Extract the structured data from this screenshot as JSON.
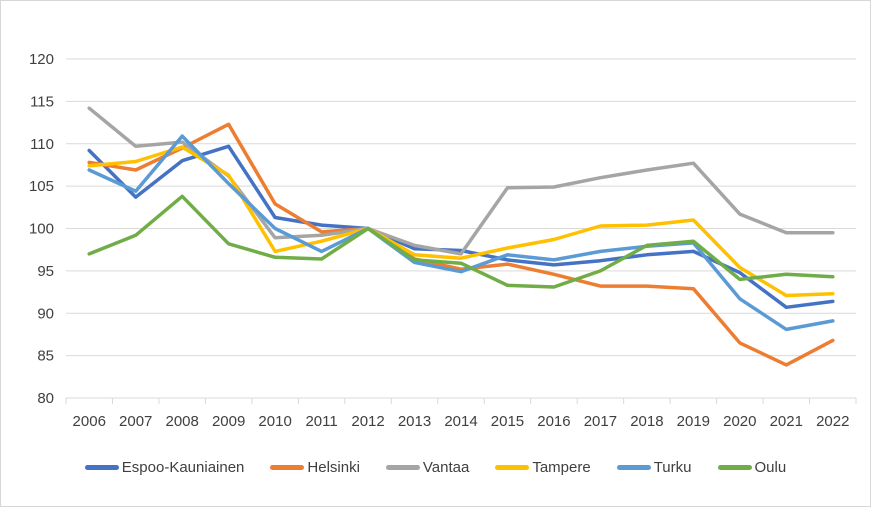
{
  "chart_data": {
    "type": "line",
    "title": "",
    "xlabel": "",
    "ylabel": "",
    "x": [
      "2006",
      "2007",
      "2008",
      "2009",
      "2010",
      "2011",
      "2012",
      "2013",
      "2014",
      "2015",
      "2016",
      "2017",
      "2018",
      "2019",
      "2020",
      "2021",
      "2022"
    ],
    "ylim": [
      80,
      120
    ],
    "y_ticks": [
      120,
      115,
      110,
      105,
      100,
      95,
      90,
      85,
      80
    ],
    "grid": "horizontal",
    "legend_position": "bottom",
    "gridline_color": "#d9d9d9",
    "axis_text_color": "#404040",
    "series": [
      {
        "name": "Espoo-Kauniainen",
        "color": "#4472C4",
        "values": [
          109.2,
          103.7,
          108.0,
          109.7,
          101.3,
          100.4,
          100.0,
          97.6,
          97.4,
          96.3,
          95.7,
          96.2,
          96.9,
          97.3,
          94.8,
          90.7,
          91.4
        ]
      },
      {
        "name": "Helsinki",
        "color": "#ED7D31",
        "values": [
          107.8,
          106.9,
          109.5,
          112.3,
          102.9,
          99.6,
          100.0,
          96.4,
          95.2,
          95.8,
          94.6,
          93.2,
          93.2,
          92.9,
          86.5,
          83.9,
          86.8
        ]
      },
      {
        "name": "Vantaa",
        "color": "#A5A5A5",
        "values": [
          114.2,
          109.7,
          110.2,
          106.2,
          98.9,
          99.2,
          100.0,
          98.0,
          97.0,
          104.8,
          104.9,
          106.0,
          106.9,
          107.7,
          101.7,
          99.5,
          99.5
        ]
      },
      {
        "name": "Tampere",
        "color": "#FFC000",
        "values": [
          107.4,
          107.9,
          109.6,
          106.3,
          97.3,
          98.5,
          100.0,
          96.9,
          96.5,
          97.7,
          98.7,
          100.3,
          100.4,
          101.0,
          95.4,
          92.1,
          92.3
        ]
      },
      {
        "name": "Turku",
        "color": "#5B9BD5",
        "values": [
          106.9,
          104.4,
          110.9,
          105.3,
          100.0,
          97.3,
          100.0,
          96.0,
          94.9,
          96.9,
          96.3,
          97.3,
          97.9,
          98.3,
          91.7,
          88.1,
          89.1
        ]
      },
      {
        "name": "Oulu",
        "color": "#70AD47",
        "values": [
          97.0,
          99.2,
          103.8,
          98.2,
          96.6,
          96.4,
          100.0,
          96.3,
          95.9,
          93.3,
          93.1,
          95.0,
          98.0,
          98.5,
          94.0,
          94.6,
          94.3
        ]
      }
    ]
  }
}
